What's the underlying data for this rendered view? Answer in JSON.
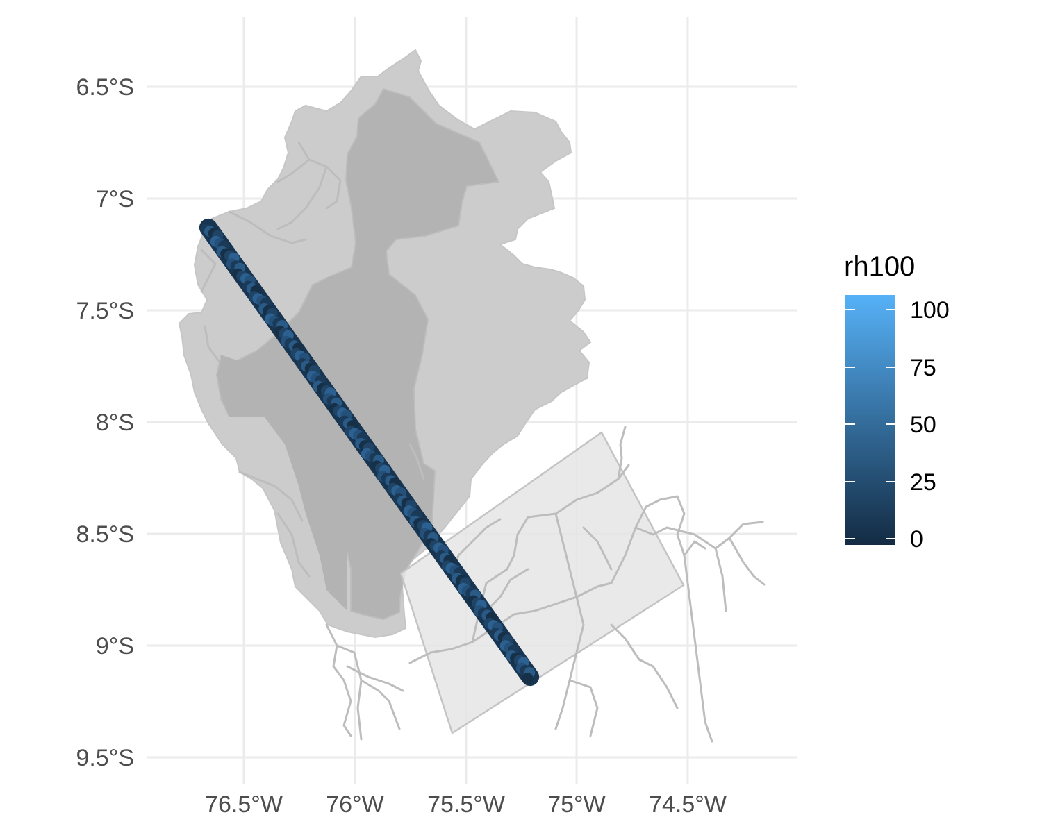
{
  "map": {
    "x_axis": {
      "tick_labels": [
        "76.5°W",
        "76°W",
        "75.5°W",
        "75°W",
        "74.5°W"
      ],
      "tick_values": [
        -76.5,
        -76.0,
        -75.5,
        -75.0,
        -74.5
      ],
      "range": [
        -76.93,
        -74.52
      ]
    },
    "y_axis": {
      "tick_labels": [
        "6.5°S",
        "7°S",
        "7.5°S",
        "8°S",
        "8.5°S",
        "9°S",
        "9.5°S"
      ],
      "tick_values": [
        -6.5,
        -7.0,
        -7.5,
        -8.0,
        -8.5,
        -9.0,
        -9.5
      ],
      "range": [
        -9.56,
        -6.2
      ]
    },
    "legend": {
      "title": "rh100",
      "labels": [
        "100",
        "75",
        "50",
        "25",
        "0"
      ],
      "values": [
        100,
        75,
        50,
        25,
        0
      ],
      "color_low": "#132B43",
      "color_high": "#56B1F7"
    },
    "layers": {
      "region_fill": "#cccccc",
      "inner_region_fill": "#b3b3b3",
      "box_fill": "#e5e5e5",
      "road_color": "#bdbdbd",
      "track_start": [
        -76.66,
        -7.13
      ],
      "track_end": [
        -75.21,
        -9.14
      ],
      "track_color": "#1f4466"
    }
  }
}
